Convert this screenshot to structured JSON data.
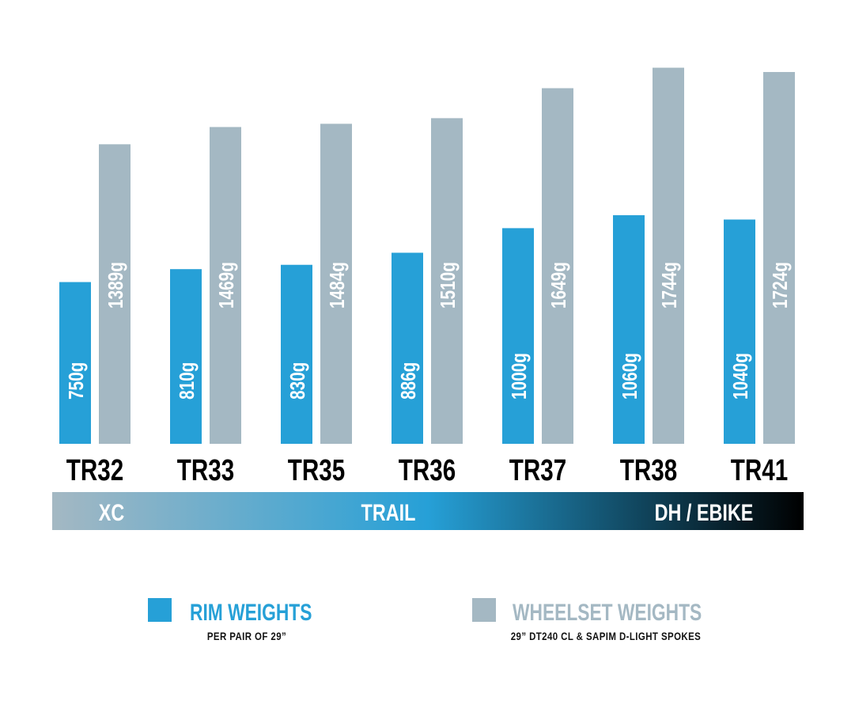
{
  "chart_data": {
    "type": "bar",
    "categories": [
      "TR32",
      "TR33",
      "TR35",
      "TR36",
      "TR37",
      "TR38",
      "TR41"
    ],
    "series": [
      {
        "name": "RIM WEIGHTS",
        "subtitle": "PER PAIR OF 29”",
        "color": "#26a0d7",
        "values": [
          750,
          810,
          830,
          886,
          1000,
          1060,
          1040
        ],
        "labels": [
          "750g",
          "810g",
          "830g",
          "886g",
          "1000g",
          "1060g",
          "1040g"
        ]
      },
      {
        "name": "WHEELSET WEIGHTS",
        "subtitle": "29” DT240 CL & SAPIM D-LIGHT SPOKES",
        "color": "#a4b8c3",
        "values": [
          1389,
          1469,
          1484,
          1510,
          1649,
          1744,
          1724
        ],
        "labels": [
          "1389g",
          "1469g",
          "1484g",
          "1510g",
          "1649g",
          "1744g",
          "1724g"
        ]
      }
    ],
    "scale_bar": {
      "labels": [
        "XC",
        "TRAIL",
        "DH / EBIKE"
      ],
      "colors": [
        "#a4b8c3",
        "#26a0d7",
        "#000000"
      ]
    },
    "legend_placement": "bottom",
    "legend_title_colors": [
      "#26a0d7",
      "#a4b8c3"
    ]
  }
}
